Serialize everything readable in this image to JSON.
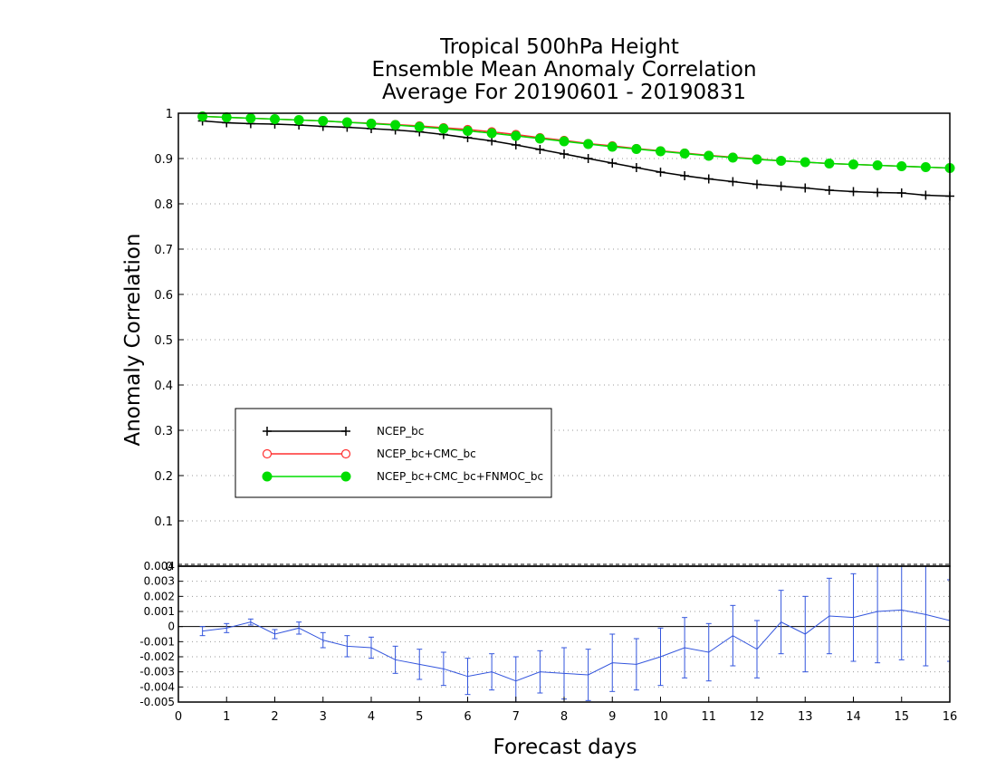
{
  "chart_data": {
    "type": "line",
    "title": [
      "Tropical 500hPa Height",
      "Ensemble Mean Anomaly Correlation",
      "Average For 20190601 - 20190831"
    ],
    "xlabel": "Forecast days",
    "ylabel": "Anomaly Correlation",
    "xlim": [
      0,
      16
    ],
    "xticks": [
      "0",
      "1",
      "2",
      "3",
      "4",
      "5",
      "6",
      "7",
      "8",
      "9",
      "10",
      "11",
      "12",
      "13",
      "14",
      "15",
      "16"
    ],
    "top_panel": {
      "ylim": [
        0,
        1
      ],
      "yticks": [
        "0",
        "0.1",
        "0.2",
        "0.3",
        "0.4",
        "0.5",
        "0.6",
        "0.7",
        "0.8",
        "0.9",
        "1"
      ],
      "grid": "horizontal dotted",
      "legend_placement": "lower-left",
      "x": [
        0.5,
        1,
        1.5,
        2,
        2.5,
        3,
        3.5,
        4,
        4.5,
        5,
        5.5,
        6,
        6.5,
        7,
        7.5,
        8,
        8.5,
        9,
        9.5,
        10,
        10.5,
        11,
        11.5,
        12,
        12.5,
        13,
        13.5,
        14,
        14.5,
        15,
        15.5,
        16
      ],
      "series": [
        {
          "name": "NCEP_bc",
          "color": "#000000",
          "marker": "plus",
          "values": [
            0.983,
            0.979,
            0.977,
            0.976,
            0.974,
            0.971,
            0.969,
            0.966,
            0.963,
            0.959,
            0.953,
            0.946,
            0.939,
            0.93,
            0.92,
            0.91,
            0.9,
            0.89,
            0.88,
            0.87,
            0.862,
            0.855,
            0.849,
            0.843,
            0.839,
            0.835,
            0.83,
            0.827,
            0.825,
            0.824,
            0.819,
            0.817
          ]
        },
        {
          "name": "NCEP_bc+CMC_bc",
          "color": "#ff3030",
          "marker": "open-circle",
          "values": [
            0.993,
            0.991,
            0.989,
            0.987,
            0.985,
            0.983,
            0.98,
            0.978,
            0.975,
            0.972,
            0.968,
            0.964,
            0.959,
            0.953,
            0.946,
            0.94,
            0.933,
            0.928,
            0.922,
            0.917,
            0.912,
            0.907,
            0.903,
            0.899,
            0.895,
            0.892,
            0.889,
            0.887,
            0.885,
            0.883,
            0.881,
            0.879
          ]
        },
        {
          "name": "NCEP_bc+CMC_bc+FNMOC_bc",
          "color": "#00dd00",
          "marker": "filled-circle",
          "values": [
            0.993,
            0.991,
            0.989,
            0.987,
            0.985,
            0.983,
            0.98,
            0.977,
            0.974,
            0.97,
            0.966,
            0.961,
            0.956,
            0.95,
            0.944,
            0.938,
            0.932,
            0.926,
            0.921,
            0.916,
            0.911,
            0.906,
            0.902,
            0.898,
            0.895,
            0.892,
            0.889,
            0.887,
            0.885,
            0.883,
            0.881,
            0.879
          ]
        }
      ]
    },
    "bottom_panel": {
      "ylim": [
        -0.005,
        0.004
      ],
      "yticks": [
        "-0.005",
        "-0.004",
        "-0.003",
        "-0.002",
        "-0.001",
        "0",
        "0.001",
        "0.002",
        "0.003",
        "0.004"
      ],
      "grid": "horizontal dotted",
      "zero_line": true,
      "series": [
        {
          "name": "",
          "color": "#3355dd",
          "values": [
            -0.0003,
            -0.0001,
            0.0003,
            -0.0005,
            -0.0001,
            -0.0009,
            -0.0013,
            -0.0014,
            -0.0022,
            -0.0025,
            -0.0028,
            -0.0033,
            -0.003,
            -0.0036,
            -0.003,
            -0.0031,
            -0.0032,
            -0.0024,
            -0.0025,
            -0.002,
            -0.0014,
            -0.0017,
            -0.0006,
            -0.0015,
            0.0003,
            -0.0005,
            0.0007,
            0.0006,
            0.001,
            0.0011,
            0.0008,
            0.0004
          ],
          "errors": [
            0.0003,
            0.0003,
            0.0002,
            0.0003,
            0.0004,
            0.0005,
            0.0007,
            0.0007,
            0.0009,
            0.001,
            0.0011,
            0.0012,
            0.0012,
            0.0016,
            0.0014,
            0.0017,
            0.0017,
            0.0019,
            0.0017,
            0.0019,
            0.002,
            0.0019,
            0.002,
            0.0019,
            0.0021,
            0.0025,
            0.0025,
            0.0029,
            0.0034,
            0.0033,
            0.0034,
            0.0027
          ]
        }
      ]
    }
  }
}
